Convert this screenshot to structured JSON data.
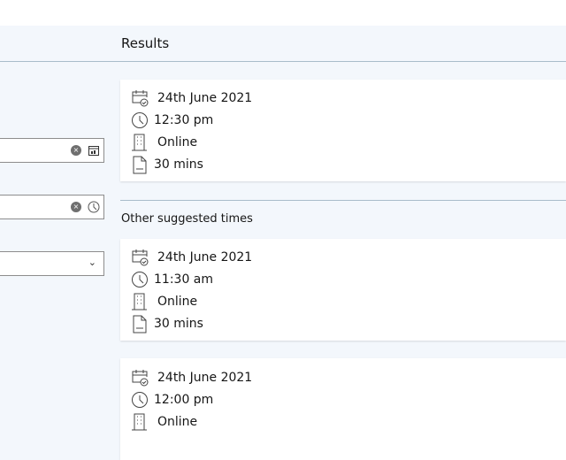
{
  "results": {
    "title": "Results"
  },
  "other": {
    "title": "Other suggested times"
  },
  "form": {
    "clear_icon": "×",
    "chevron": "⌄"
  },
  "cards": [
    {
      "date": "24th June 2021",
      "time": "12:30 pm",
      "location": "Online",
      "duration": "30 mins"
    },
    {
      "date": "24th June 2021",
      "time": "11:30 am",
      "location": "Online",
      "duration": "30 mins"
    },
    {
      "date": "24th June 2021",
      "time": "12:00 pm",
      "location": "Online",
      "duration": ""
    }
  ]
}
